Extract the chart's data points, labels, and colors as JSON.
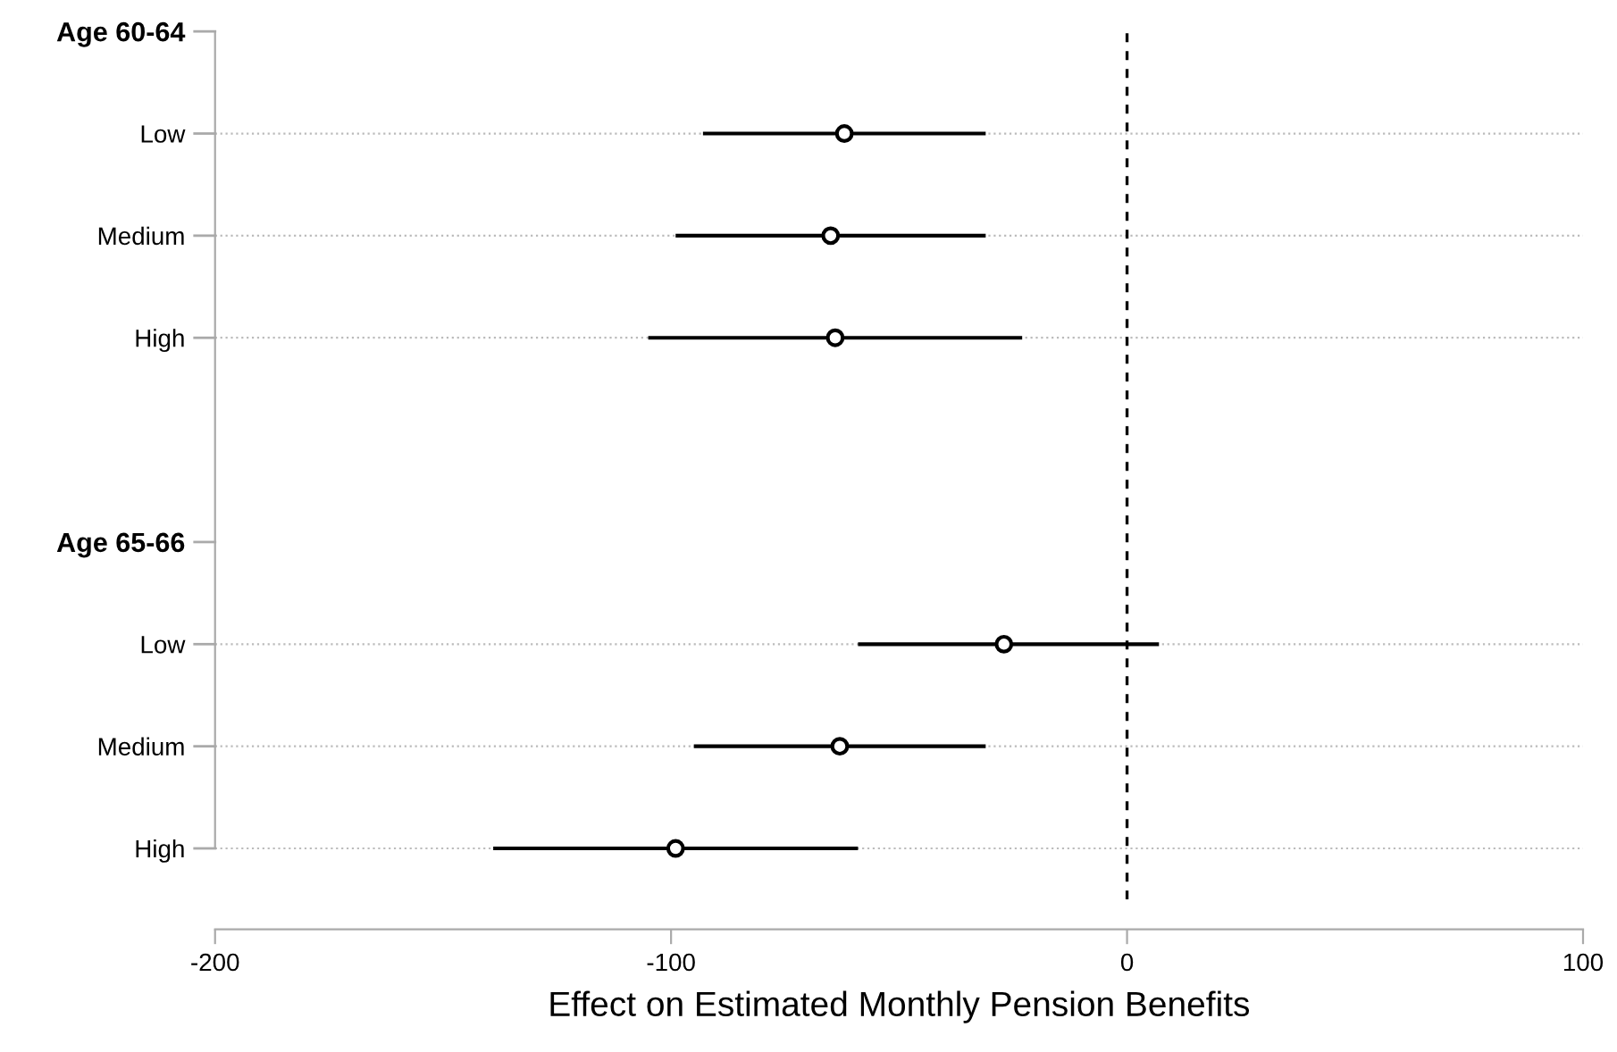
{
  "chart_data": {
    "type": "scatter",
    "orientation": "horizontal",
    "xlabel": "Effect on Estimated Monthly Pension Benefits",
    "categories": [
      "Age 60-64",
      "Low",
      "Medium",
      "High",
      null,
      "Age 65-66",
      "Low",
      "Medium",
      "High"
    ],
    "series": [
      {
        "color": "#000000",
        "values": [
          null,
          -62,
          -65,
          -64,
          null,
          null,
          -27,
          -63,
          -99
        ],
        "errors": [
          null,
          [
            -93,
            -31
          ],
          [
            -99,
            -31
          ],
          [
            -105,
            -23
          ],
          null,
          null,
          [
            -59,
            7
          ],
          [
            -95,
            -31
          ],
          [
            -139,
            -59
          ]
        ]
      }
    ],
    "marker": "circle",
    "xlim": [
      -200,
      100
    ],
    "xticks": [
      -200,
      -100,
      0,
      100
    ],
    "grid": "y",
    "ref_lines": [
      {
        "axis": "x",
        "value": 0,
        "color": "#000000",
        "line_style": "dashed"
      }
    ]
  }
}
